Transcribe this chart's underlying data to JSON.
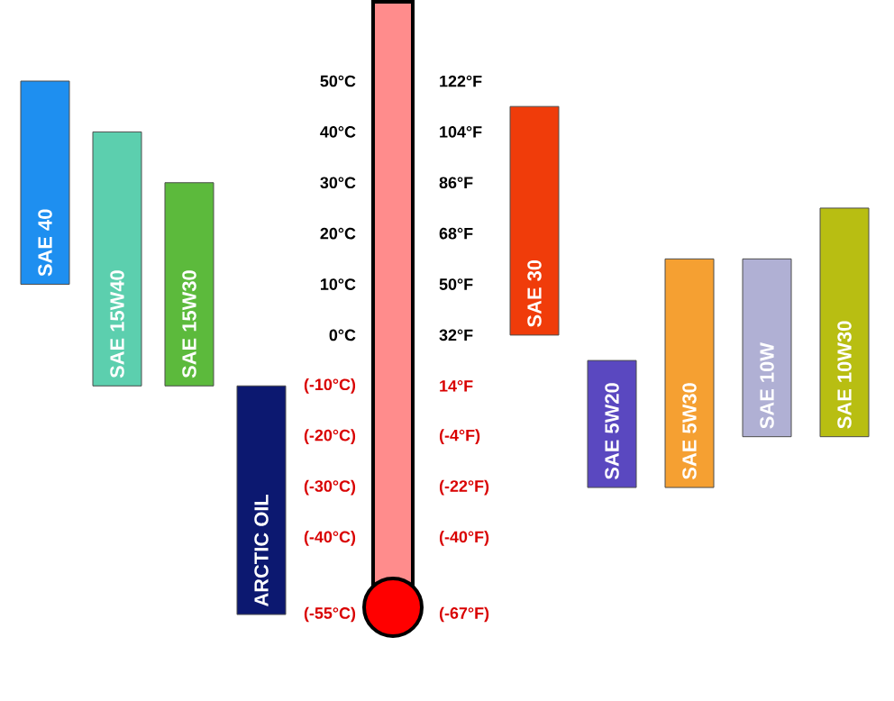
{
  "chart_data": [
    {
      "type": "bar",
      "categories": [
        "SAE 40",
        "SAE 15W40",
        "SAE 15W30",
        "ARCTIC OIL"
      ],
      "base": [
        10,
        -10,
        -10,
        -55
      ],
      "values": [
        40,
        50,
        40,
        45
      ],
      "colors": [
        "#1e8ff0",
        "#5ccfae",
        "#5cba3c",
        "#0c1870"
      ],
      "ylim": [
        -55,
        50
      ],
      "yticks": [
        {
          "value": 50,
          "label": "50°C"
        },
        {
          "value": 40,
          "label": "40°C"
        },
        {
          "value": 30,
          "label": "30°C"
        },
        {
          "value": 20,
          "label": "20°C"
        },
        {
          "value": 10,
          "label": "10°C"
        },
        {
          "value": 0,
          "label": "0°C"
        },
        {
          "value": -10,
          "label": "(-10°C)"
        },
        {
          "value": -20,
          "label": "(-20°C)"
        },
        {
          "value": -30,
          "label": "(-30°C)"
        },
        {
          "value": -40,
          "label": "(-40°C)"
        },
        {
          "value": -55,
          "label": "(-55°C)"
        }
      ]
    },
    {
      "type": "bar",
      "categories": [
        "SAE 30",
        "SAE 5W20",
        "SAE 5W30",
        "SAE 10W",
        "SAE 10W30"
      ],
      "base": [
        32,
        -22,
        -22,
        -4,
        -4
      ],
      "values": [
        81,
        45,
        81,
        63,
        81
      ],
      "colors": [
        "#f03c0a",
        "#5a48c0",
        "#f5a032",
        "#b0b0d4",
        "#b8be12"
      ],
      "ylim": [
        -67,
        122
      ],
      "yticks": [
        {
          "value": 122,
          "label": "122°F"
        },
        {
          "value": 104,
          "label": "104°F"
        },
        {
          "value": 86,
          "label": "86°F"
        },
        {
          "value": 68,
          "label": "68°F"
        },
        {
          "value": 50,
          "label": "50°F"
        },
        {
          "value": 32,
          "label": "32°F"
        },
        {
          "value": 14,
          "label": "14°F"
        },
        {
          "value": -4,
          "label": "(-4°F)"
        },
        {
          "value": -22,
          "label": "(-22°F)"
        },
        {
          "value": -40,
          "label": "(-40°F)"
        },
        {
          "value": -67,
          "label": "(-67°F)"
        }
      ]
    }
  ]
}
